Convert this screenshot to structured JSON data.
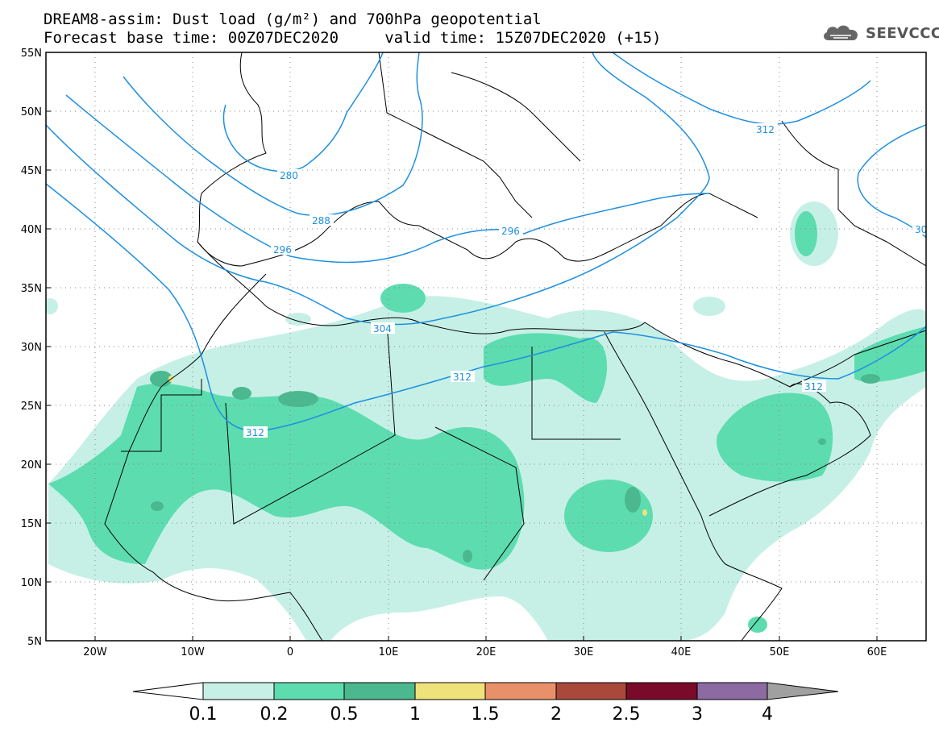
{
  "title": {
    "line1": "DREAM8-assim: Dust load (g/m²) and 700hPa geopotential",
    "line2": "Forecast base time: 00Z07DEC2020     valid time: 15Z07DEC2020 (+15)"
  },
  "logo": {
    "text": "SEEVCCC",
    "icon": "cloud-icon"
  },
  "map": {
    "lon_range": [
      -25,
      65
    ],
    "lat_range": [
      5,
      55
    ],
    "lat_labels": [
      "55N",
      "50N",
      "45N",
      "40N",
      "35N",
      "30N",
      "25N",
      "20N",
      "15N",
      "10N",
      "5N"
    ],
    "lon_labels": [
      "20W",
      "10W",
      "0",
      "10E",
      "20E",
      "30E",
      "40E",
      "50E",
      "60E"
    ],
    "contour_labels": [
      "280",
      "288",
      "296",
      "296",
      "304",
      "312",
      "312",
      "312",
      "312",
      "30"
    ]
  },
  "colorbar": {
    "labels": [
      "0.1",
      "0.2",
      "0.5",
      "1",
      "1.5",
      "2",
      "2.5",
      "3",
      "4"
    ],
    "colors": [
      "#c6f0e6",
      "#5ddcb0",
      "#4bb88f",
      "#f0e27a",
      "#e8906a",
      "#a9493c",
      "#7a0a2a",
      "#8d6aa2",
      "#a0a0a0"
    ]
  },
  "colors": {
    "contour": "#1e90e0",
    "coast": "#000000",
    "grid": "#888888"
  }
}
